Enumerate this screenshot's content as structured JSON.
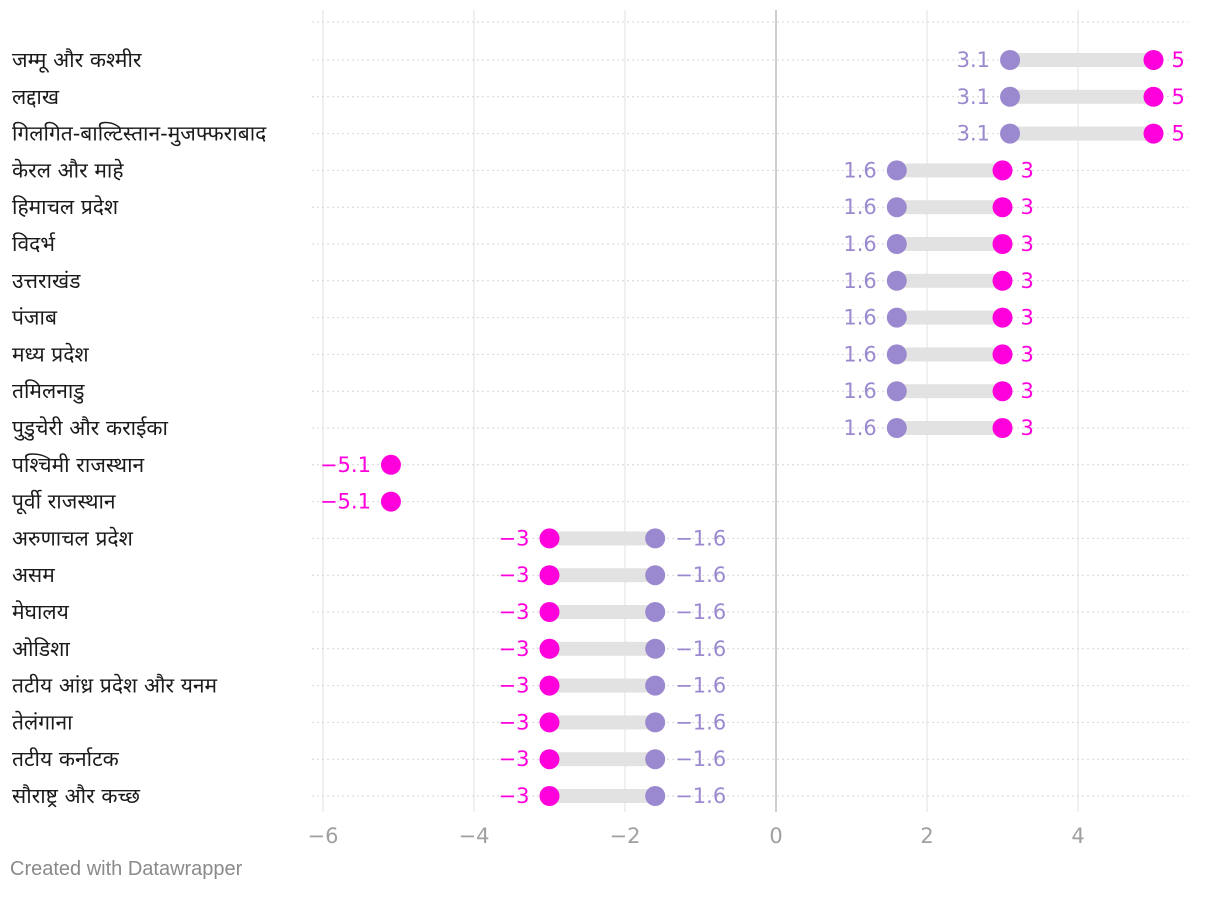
{
  "chart_data": {
    "type": "dot-range",
    "title": "",
    "xlabel": "",
    "ylabel": "",
    "xlim": [
      -6,
      5.4
    ],
    "x_ticks": [
      -6,
      -4,
      -2,
      0,
      2,
      4
    ],
    "x_tick_labels": [
      "−6",
      "−4",
      "−2",
      "0",
      "2",
      "4"
    ],
    "grid": true,
    "legend": "none",
    "categories": [
      "जम्मू और कश्मीर",
      "लद्दाख",
      "गिलगित-बाल्टिस्तान-मुजफ्फराबाद",
      "केरल और माहे",
      "हिमाचल प्रदेश",
      "विदर्भ",
      "उत्तराखंड",
      "पंजाब",
      "मध्य प्रदेश",
      "तमिलनाडु",
      "पुडुचेरी और कराईका",
      "पश्चिमी राजस्थान",
      "पूर्वी राजस्थान",
      "अरुणाचल प्रदेश",
      "असम",
      "मेघालय",
      "ओडिशा",
      "तटीय आंध्र प्रदेश और यनम",
      "तेलंगाना",
      "तटीय कर्नाटक",
      "सौराष्ट्र और कच्छ"
    ],
    "series": [
      {
        "name": "series-purple",
        "color": "#9b89cf",
        "values": [
          3.1,
          3.1,
          3.1,
          1.6,
          1.6,
          1.6,
          1.6,
          1.6,
          1.6,
          1.6,
          1.6,
          null,
          null,
          -1.6,
          -1.6,
          -1.6,
          -1.6,
          -1.6,
          -1.6,
          -1.6,
          -1.6
        ],
        "labels": [
          "3.1",
          "3.1",
          "3.1",
          "1.6",
          "1.6",
          "1.6",
          "1.6",
          "1.6",
          "1.6",
          "1.6",
          "1.6",
          null,
          null,
          "−1.6",
          "−1.6",
          "−1.6",
          "−1.6",
          "−1.6",
          "−1.6",
          "−1.6",
          "−1.6"
        ]
      },
      {
        "name": "series-magenta",
        "color": "#ff00dd",
        "values": [
          5,
          5,
          5,
          3,
          3,
          3,
          3,
          3,
          3,
          3,
          3,
          -5.1,
          -5.1,
          -3,
          -3,
          -3,
          -3,
          -3,
          -3,
          -3,
          -3
        ],
        "labels": [
          "5",
          "5",
          "5",
          "3",
          "3",
          "3",
          "3",
          "3",
          "3",
          "3",
          "3",
          "−5.1",
          "−5.1",
          "−3",
          "−3",
          "−3",
          "−3",
          "−3",
          "−3",
          "−3",
          "−3"
        ]
      }
    ]
  },
  "colors": {
    "range_bar": "#e2e2e2",
    "grid": "#e0e0e0",
    "zero_line": "#bdbdbd",
    "row_line": "#d6d6d6"
  },
  "footer": {
    "credit": "Created with Datawrapper"
  }
}
